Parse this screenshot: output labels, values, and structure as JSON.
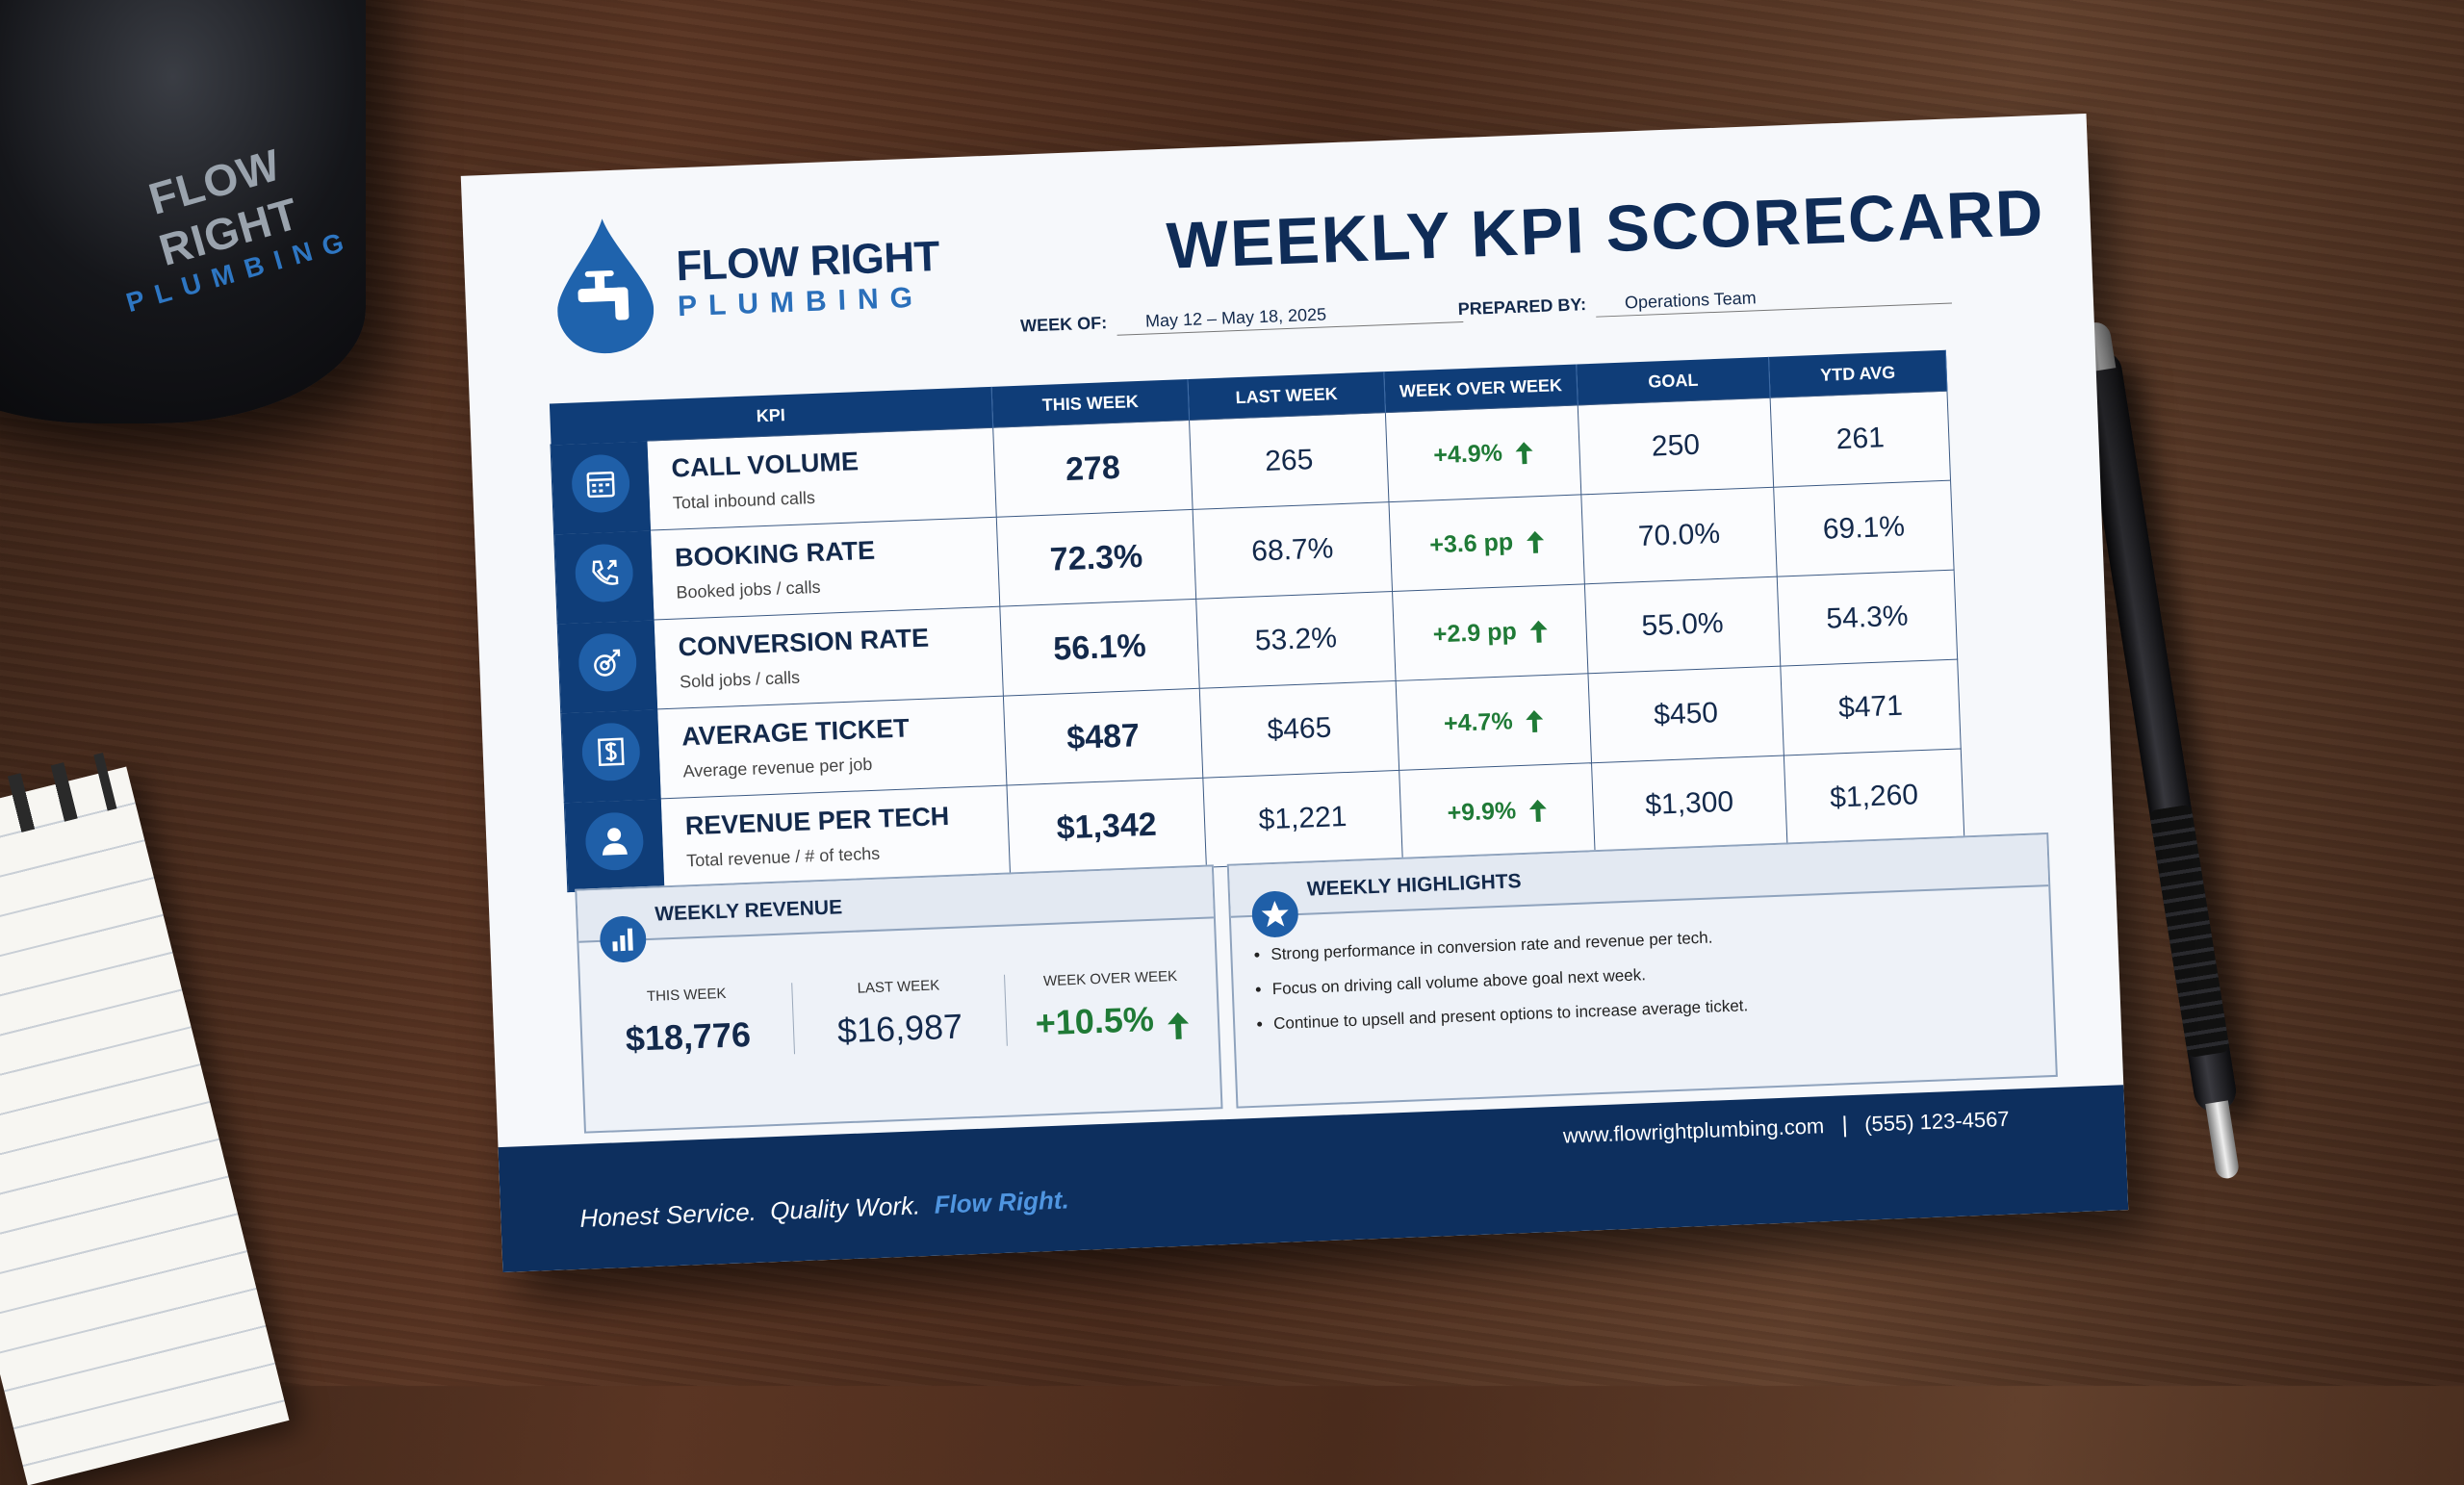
{
  "mug": {
    "name": "FLOW RIGHT",
    "sub": "PLUMBING"
  },
  "brand": {
    "name": "FLOW RIGHT",
    "sub": "PLUMBING"
  },
  "header": {
    "title": "WEEKLY KPI SCORECARD",
    "week_of_label": "WEEK OF:",
    "week_of": "May 12 – May 18, 2025",
    "prepared_by_label": "PREPARED BY:",
    "prepared_by": "Operations Team"
  },
  "table": {
    "columns": [
      "KPI",
      "THIS WEEK",
      "LAST WEEK",
      "WEEK OVER WEEK",
      "GOAL",
      "YTD AVG"
    ],
    "rows": [
      {
        "name": "CALL VOLUME",
        "desc": "Total inbound calls",
        "this_week": "278",
        "last_week": "265",
        "wow": "+4.9%",
        "goal": "250",
        "ytd": "261"
      },
      {
        "name": "BOOKING RATE",
        "desc": "Booked jobs / calls",
        "this_week": "72.3%",
        "last_week": "68.7%",
        "wow": "+3.6 pp",
        "goal": "70.0%",
        "ytd": "69.1%"
      },
      {
        "name": "CONVERSION RATE",
        "desc": "Sold jobs / calls",
        "this_week": "56.1%",
        "last_week": "53.2%",
        "wow": "+2.9 pp",
        "goal": "55.0%",
        "ytd": "54.3%"
      },
      {
        "name": "AVERAGE TICKET",
        "desc": "Average revenue per job",
        "this_week": "$487",
        "last_week": "$465",
        "wow": "+4.7%",
        "goal": "$450",
        "ytd": "$471"
      },
      {
        "name": "REVENUE PER TECH",
        "desc": "Total revenue / # of techs",
        "this_week": "$1,342",
        "last_week": "$1,221",
        "wow": "+9.9%",
        "goal": "$1,300",
        "ytd": "$1,260"
      }
    ]
  },
  "revenue": {
    "title": "WEEKLY REVENUE",
    "this_week_label": "THIS WEEK",
    "this_week": "$18,776",
    "last_week_label": "LAST WEEK",
    "last_week": "$16,987",
    "wow_label": "WEEK OVER WEEK",
    "wow": "+10.5%"
  },
  "highlights": {
    "title": "WEEKLY HIGHLIGHTS",
    "items": [
      "Strong performance in conversion rate and revenue per tech.",
      "Focus on driving call volume above goal next week.",
      "Continue to upsell and present options to increase average ticket."
    ]
  },
  "footer": {
    "tagline_1": "Honest Service.",
    "tagline_2": "Quality Work.",
    "tagline_3": "Flow Right.",
    "website": "www.flowrightplumbing.com",
    "phone": "(555) 123-4567"
  }
}
